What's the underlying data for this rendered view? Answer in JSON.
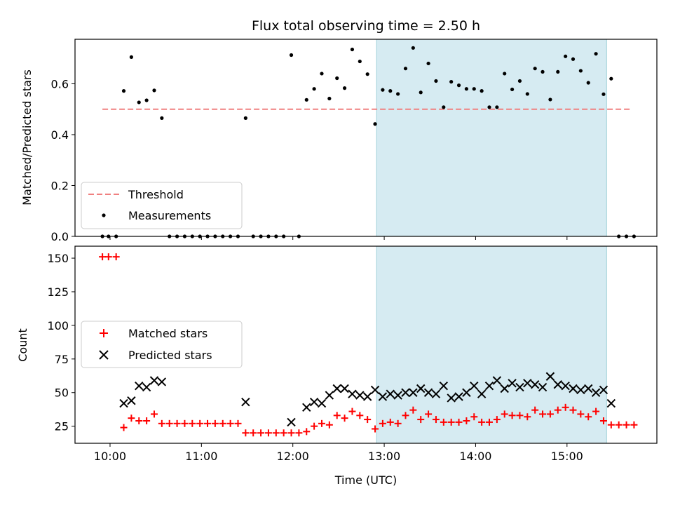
{
  "chart_data": [
    {
      "type": "scatter",
      "title": "Flux total observing time = 2.50 h",
      "xlabel": "",
      "ylabel": "Matched/Predicted stars",
      "xlim": [
        "09:37",
        "15:59"
      ],
      "ylim": [
        0,
        0.775
      ],
      "yticks": [
        0.0,
        0.2,
        0.4,
        0.6
      ],
      "ytick_labels": [
        "0.0",
        "0.2",
        "0.4",
        "0.6"
      ],
      "shaded_interval": [
        "12:55",
        "15:26"
      ],
      "legend_position": "lower-left",
      "threshold": {
        "name": "Threshold",
        "y": 0.5,
        "x_start": "09:55",
        "x_end": "15:42",
        "color": "#f08080"
      },
      "measurements": {
        "name": "Measurements",
        "color": "#000000",
        "points": [
          [
            "09:55",
            0
          ],
          [
            "09:59",
            0
          ],
          [
            "10:04",
            0
          ],
          [
            "10:09",
            0.572
          ],
          [
            "10:14",
            0.705
          ],
          [
            "10:19",
            0.527
          ],
          [
            "10:24",
            0.535
          ],
          [
            "10:29",
            0.574
          ],
          [
            "10:34",
            0.465
          ],
          [
            "10:39",
            0
          ],
          [
            "10:44",
            0
          ],
          [
            "10:49",
            0
          ],
          [
            "10:54",
            0
          ],
          [
            "10:59",
            0
          ],
          [
            "11:04",
            0
          ],
          [
            "11:09",
            0
          ],
          [
            "11:14",
            0
          ],
          [
            "11:19",
            0
          ],
          [
            "11:24",
            0
          ],
          [
            "11:29",
            0.465
          ],
          [
            "11:34",
            0
          ],
          [
            "11:39",
            0
          ],
          [
            "11:44",
            0
          ],
          [
            "11:49",
            0
          ],
          [
            "11:54",
            0
          ],
          [
            "11:59",
            0.713
          ],
          [
            "12:04",
            0
          ],
          [
            "12:09",
            0.537
          ],
          [
            "12:14",
            0.58
          ],
          [
            "12:19",
            0.64
          ],
          [
            "12:24",
            0.542
          ],
          [
            "12:29",
            0.622
          ],
          [
            "12:34",
            0.583
          ],
          [
            "12:39",
            0.735
          ],
          [
            "12:44",
            0.688
          ],
          [
            "12:49",
            0.638
          ],
          [
            "12:54",
            0.442
          ],
          [
            "12:59",
            0.576
          ],
          [
            "13:04",
            0.572
          ],
          [
            "13:09",
            0.56
          ],
          [
            "13:14",
            0.66
          ],
          [
            "13:19",
            0.741
          ],
          [
            "13:24",
            0.566
          ],
          [
            "13:29",
            0.68
          ],
          [
            "13:34",
            0.611
          ],
          [
            "13:39",
            0.508
          ],
          [
            "13:44",
            0.608
          ],
          [
            "13:49",
            0.594
          ],
          [
            "13:54",
            0.58
          ],
          [
            "13:59",
            0.58
          ],
          [
            "14:04",
            0.572
          ],
          [
            "14:09",
            0.508
          ],
          [
            "14:14",
            0.508
          ],
          [
            "14:19",
            0.64
          ],
          [
            "14:24",
            0.578
          ],
          [
            "14:29",
            0.611
          ],
          [
            "14:34",
            0.56
          ],
          [
            "14:39",
            0.66
          ],
          [
            "14:44",
            0.647
          ],
          [
            "14:49",
            0.538
          ],
          [
            "14:54",
            0.647
          ],
          [
            "14:59",
            0.708
          ],
          [
            "15:04",
            0.697
          ],
          [
            "15:09",
            0.651
          ],
          [
            "15:14",
            0.604
          ],
          [
            "15:19",
            0.718
          ],
          [
            "15:24",
            0.559
          ],
          [
            "15:29",
            0.62
          ],
          [
            "15:34",
            0
          ],
          [
            "15:39",
            0
          ],
          [
            "15:44",
            0
          ]
        ]
      },
      "legend_entries": [
        "Threshold",
        "Measurements"
      ]
    },
    {
      "type": "scatter",
      "title": "",
      "xlabel": "Time (UTC)",
      "ylabel": "Count",
      "xlim": [
        "09:37",
        "15:59"
      ],
      "ylim": [
        12.3,
        158.9
      ],
      "xticks": [
        "10:00",
        "11:00",
        "12:00",
        "13:00",
        "14:00",
        "15:00"
      ],
      "yticks": [
        25,
        50,
        75,
        100,
        125,
        150
      ],
      "ytick_labels": [
        "25",
        "50",
        "75",
        "100",
        "125",
        "150"
      ],
      "shaded_interval": [
        "12:55",
        "15:26"
      ],
      "legend_position": "center-left",
      "series": [
        {
          "name": "Matched stars",
          "marker": "plus",
          "color": "#ff0000",
          "points": [
            [
              "09:55",
              151
            ],
            [
              "09:59",
              151
            ],
            [
              "10:04",
              151
            ],
            [
              "10:09",
              24
            ],
            [
              "10:14",
              31
            ],
            [
              "10:19",
              29
            ],
            [
              "10:24",
              29
            ],
            [
              "10:29",
              34
            ],
            [
              "10:34",
              27
            ],
            [
              "10:39",
              27
            ],
            [
              "10:44",
              27
            ],
            [
              "10:49",
              27
            ],
            [
              "10:54",
              27
            ],
            [
              "10:59",
              27
            ],
            [
              "11:04",
              27
            ],
            [
              "11:09",
              27
            ],
            [
              "11:14",
              27
            ],
            [
              "11:19",
              27
            ],
            [
              "11:24",
              27
            ],
            [
              "11:29",
              20
            ],
            [
              "11:34",
              20
            ],
            [
              "11:39",
              20
            ],
            [
              "11:44",
              20
            ],
            [
              "11:49",
              20
            ],
            [
              "11:54",
              20
            ],
            [
              "11:59",
              20
            ],
            [
              "12:04",
              20
            ],
            [
              "12:09",
              21
            ],
            [
              "12:14",
              25
            ],
            [
              "12:19",
              27
            ],
            [
              "12:24",
              26
            ],
            [
              "12:29",
              33
            ],
            [
              "12:34",
              31
            ],
            [
              "12:39",
              36
            ],
            [
              "12:44",
              33
            ],
            [
              "12:49",
              30
            ],
            [
              "12:54",
              23
            ],
            [
              "12:59",
              27
            ],
            [
              "13:04",
              28
            ],
            [
              "13:09",
              27
            ],
            [
              "13:14",
              33
            ],
            [
              "13:19",
              37
            ],
            [
              "13:24",
              30
            ],
            [
              "13:29",
              34
            ],
            [
              "13:34",
              30
            ],
            [
              "13:39",
              28
            ],
            [
              "13:44",
              28
            ],
            [
              "13:49",
              28
            ],
            [
              "13:54",
              29
            ],
            [
              "13:59",
              32
            ],
            [
              "14:04",
              28
            ],
            [
              "14:09",
              28
            ],
            [
              "14:14",
              30
            ],
            [
              "14:19",
              34
            ],
            [
              "14:24",
              33
            ],
            [
              "14:29",
              33
            ],
            [
              "14:34",
              32
            ],
            [
              "14:39",
              37
            ],
            [
              "14:44",
              34
            ],
            [
              "14:49",
              34
            ],
            [
              "14:54",
              37
            ],
            [
              "14:59",
              39
            ],
            [
              "15:04",
              37
            ],
            [
              "15:09",
              34
            ],
            [
              "15:14",
              32
            ],
            [
              "15:19",
              36
            ],
            [
              "15:24",
              29
            ],
            [
              "15:29",
              26
            ],
            [
              "15:34",
              26
            ],
            [
              "15:39",
              26
            ],
            [
              "15:44",
              26
            ]
          ]
        },
        {
          "name": "Predicted stars",
          "marker": "x",
          "color": "#000000",
          "points": [
            [
              "10:09",
              42
            ],
            [
              "10:14",
              44
            ],
            [
              "10:19",
              55
            ],
            [
              "10:24",
              54
            ],
            [
              "10:29",
              59
            ],
            [
              "10:34",
              58
            ],
            [
              "11:29",
              43
            ],
            [
              "11:59",
              28
            ],
            [
              "12:09",
              39
            ],
            [
              "12:14",
              43
            ],
            [
              "12:19",
              42
            ],
            [
              "12:24",
              48
            ],
            [
              "12:29",
              53
            ],
            [
              "12:34",
              53
            ],
            [
              "12:39",
              49
            ],
            [
              "12:44",
              48
            ],
            [
              "12:49",
              47
            ],
            [
              "12:54",
              52
            ],
            [
              "12:59",
              47
            ],
            [
              "13:04",
              49
            ],
            [
              "13:09",
              48
            ],
            [
              "13:14",
              50
            ],
            [
              "13:19",
              50
            ],
            [
              "13:24",
              53
            ],
            [
              "13:29",
              50
            ],
            [
              "13:34",
              49
            ],
            [
              "13:39",
              55
            ],
            [
              "13:44",
              46
            ],
            [
              "13:49",
              47
            ],
            [
              "13:54",
              50
            ],
            [
              "13:59",
              55
            ],
            [
              "14:04",
              49
            ],
            [
              "14:09",
              55
            ],
            [
              "14:14",
              59
            ],
            [
              "14:19",
              53
            ],
            [
              "14:24",
              57
            ],
            [
              "14:29",
              54
            ],
            [
              "14:34",
              57
            ],
            [
              "14:39",
              56
            ],
            [
              "14:44",
              54
            ],
            [
              "14:49",
              62
            ],
            [
              "14:54",
              56
            ],
            [
              "14:59",
              55
            ],
            [
              "15:04",
              53
            ],
            [
              "15:09",
              52
            ],
            [
              "15:14",
              53
            ],
            [
              "15:19",
              50
            ],
            [
              "15:24",
              52
            ],
            [
              "15:29",
              42
            ]
          ]
        }
      ]
    }
  ],
  "colors": {
    "shade_fill": "#add8e6",
    "shade_opacity": 0.5
  }
}
